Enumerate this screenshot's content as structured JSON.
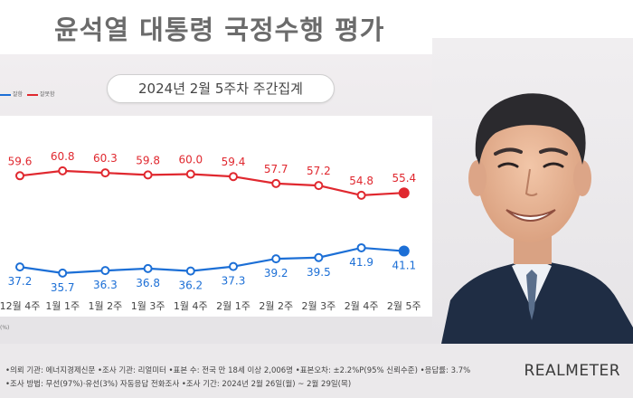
{
  "header": {
    "title": "윤석열 대통령 국정수행 평가"
  },
  "subtitle": "2024년 2월 5주차 주간집계",
  "legend": {
    "approve": "잘함",
    "disapprove": "잘못함"
  },
  "chart_data": {
    "type": "line",
    "categories": [
      "12월 4주",
      "1월 1주",
      "1월 2주",
      "1월 3주",
      "1월 4주",
      "2월 1주",
      "2월 2주",
      "2월 3주",
      "2월 4주",
      "2월 5주"
    ],
    "series": [
      {
        "name": "잘못함",
        "color": "#e0282f",
        "values": [
          59.6,
          60.8,
          60.3,
          59.8,
          60.0,
          59.4,
          57.7,
          57.2,
          54.8,
          55.4
        ],
        "labels": [
          "59.6",
          "60.8",
          "60.3",
          "59.8",
          "60.0",
          "59.4",
          "57.7",
          "57.2",
          "54.8",
          "55.4"
        ]
      },
      {
        "name": "잘함",
        "color": "#1c6fd6",
        "values": [
          37.2,
          35.7,
          36.3,
          36.8,
          36.2,
          37.3,
          39.2,
          39.5,
          41.9,
          41.1
        ],
        "labels": [
          "37.2",
          "35.7",
          "36.3",
          "36.8",
          "36.2",
          "37.3",
          "39.2",
          "39.5",
          "41.9",
          "41.1"
        ]
      }
    ],
    "grid": false
  },
  "footer": {
    "line1": "•의뢰 기관: 에너지경제신문  •조사 기관: 리얼미터  •표본 수: 전국 만 18세 이상 2,006명  •표본오차: ±2.2%P(95% 신뢰수준)  •응답률: 3.7%",
    "line2": "•조사 방법: 무선(97%)·유선(3%) 자동응답 전화조사  •조사 기간: 2024년 2월 26일(월) ~ 2월 29일(목)",
    "brand": "REALMETER"
  },
  "note": "(%)"
}
